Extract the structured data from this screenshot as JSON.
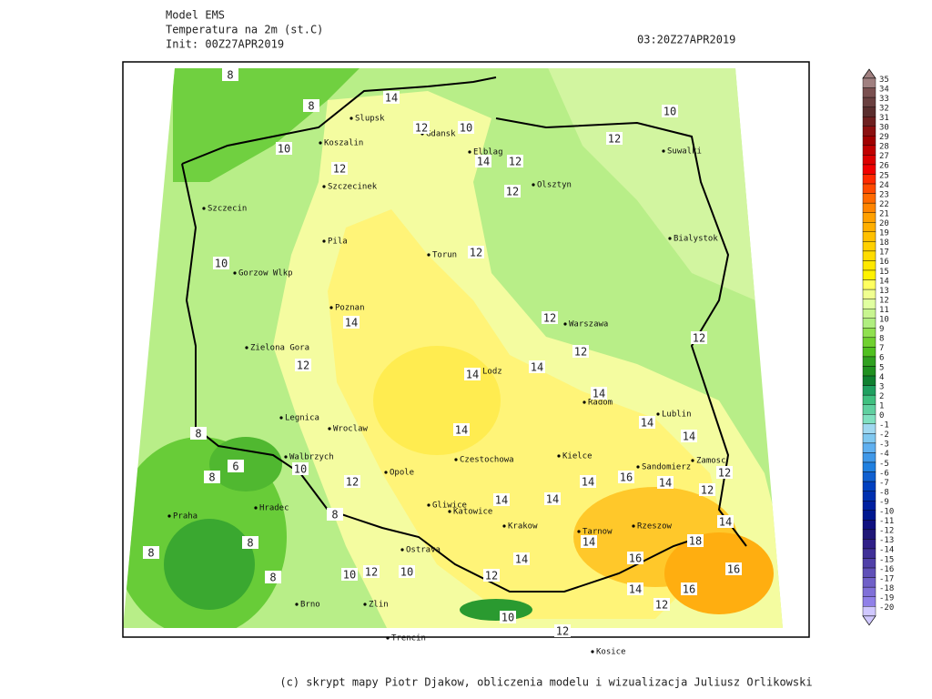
{
  "header": {
    "model": "Model EMS",
    "variable": "Temperatura na 2m (st.C)",
    "init": "Init: 00Z27APR2019",
    "valid": "03:20Z27APR2019"
  },
  "map": {
    "cities": [
      "Slupsk",
      "Gdansk",
      "Elblag",
      "Olsztyn",
      "Suwalki",
      "Koszalin",
      "Szczecinek",
      "Szczecin",
      "Bialystok",
      "Pila",
      "Torun",
      "Gorzow Wlkp",
      "Poznan",
      "Warszawa",
      "Zielona Gora",
      "Lodz",
      "Radom",
      "Lublin",
      "Legnica",
      "Wroclaw",
      "Walbrzych",
      "Opole",
      "Czestochowa",
      "Kielce",
      "Sandomierz",
      "Zamosc",
      "Hradec",
      "Praha",
      "Gliwice",
      "Katowice",
      "Krakow",
      "Rzeszow",
      "Tarnow",
      "Ostrava",
      "Brno",
      "Zlin",
      "Trencin",
      "Kosice"
    ],
    "contour_labels": [
      8,
      8,
      14,
      12,
      10,
      10,
      12,
      10,
      12,
      14,
      12,
      12,
      12,
      10,
      14,
      12,
      12,
      12,
      12,
      14,
      14,
      14,
      14,
      14,
      14,
      8,
      6,
      8,
      10,
      12,
      16,
      14,
      12,
      12,
      14,
      14,
      14,
      8,
      14,
      18,
      8,
      14,
      16,
      16,
      14,
      8,
      10,
      12,
      10,
      12,
      8,
      14,
      16,
      12,
      10,
      12
    ]
  },
  "colorbar": {
    "levels": [
      35,
      34,
      33,
      32,
      31,
      30,
      29,
      28,
      27,
      26,
      25,
      24,
      23,
      22,
      21,
      20,
      19,
      18,
      17,
      16,
      15,
      14,
      13,
      12,
      11,
      10,
      9,
      8,
      7,
      6,
      5,
      4,
      3,
      2,
      1,
      0,
      -1,
      -2,
      -3,
      -4,
      -5,
      -6,
      -7,
      -8,
      -9,
      -10,
      -11,
      -12,
      -13,
      -14,
      -15,
      -16,
      -17,
      -18,
      -19,
      -20
    ],
    "colors": [
      "#a08080",
      "#7a5050",
      "#6a4040",
      "#5a2e2e",
      "#6e2020",
      "#8b1010",
      "#a00000",
      "#c00000",
      "#dc0000",
      "#f00000",
      "#ff2a00",
      "#ff4a00",
      "#ff6a00",
      "#ff8500",
      "#ffa000",
      "#ffaf00",
      "#ffc000",
      "#ffd000",
      "#ffdc00",
      "#ffe800",
      "#fff200",
      "#ffff60",
      "#f0ff90",
      "#e0ffa0",
      "#c8f590",
      "#b0ee80",
      "#90e050",
      "#70d030",
      "#50c020",
      "#30a020",
      "#209020",
      "#108030",
      "#20a060",
      "#40c080",
      "#60d0a0",
      "#80e0c0",
      "#a0d8f0",
      "#80c8f0",
      "#60b0f0",
      "#4098e8",
      "#2080e0",
      "#1060d0",
      "#0040c0",
      "#0030b0",
      "#0020a0",
      "#001890",
      "#101080",
      "#201878",
      "#302088",
      "#403098",
      "#5040a8",
      "#6050b8",
      "#7060c8",
      "#8070d8",
      "#9080e8",
      "#d0c8ff"
    ]
  },
  "footer": "(c) skrypt mapy Piotr Djakow, obliczenia modelu i wizualizacja Juliusz Orlikowski"
}
